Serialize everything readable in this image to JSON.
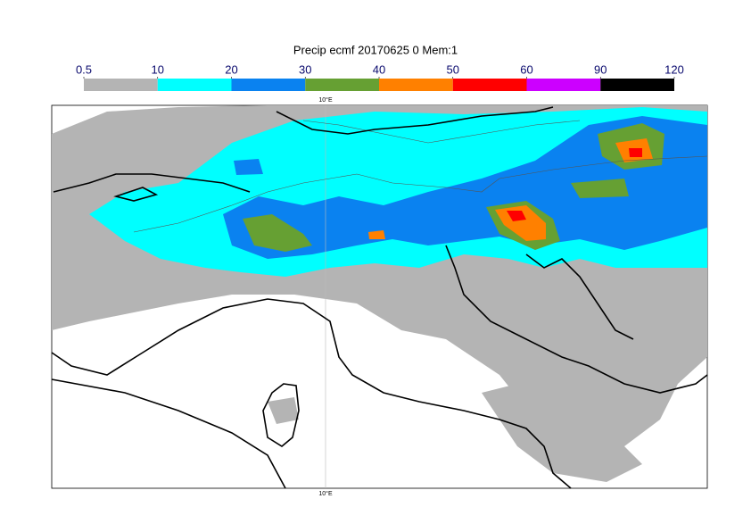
{
  "title": "Precip ecmf 20170625 0 Mem:1",
  "colorbar": {
    "ticks": [
      0.5,
      10,
      20,
      30,
      40,
      50,
      60,
      90,
      120
    ],
    "colors": [
      "#b4b4b4",
      "#00ffff",
      "#0a82f0",
      "#66a033",
      "#ff8000",
      "#ff0000",
      "#cc00ff",
      "#000000"
    ]
  },
  "meridian_label": "10°E"
}
